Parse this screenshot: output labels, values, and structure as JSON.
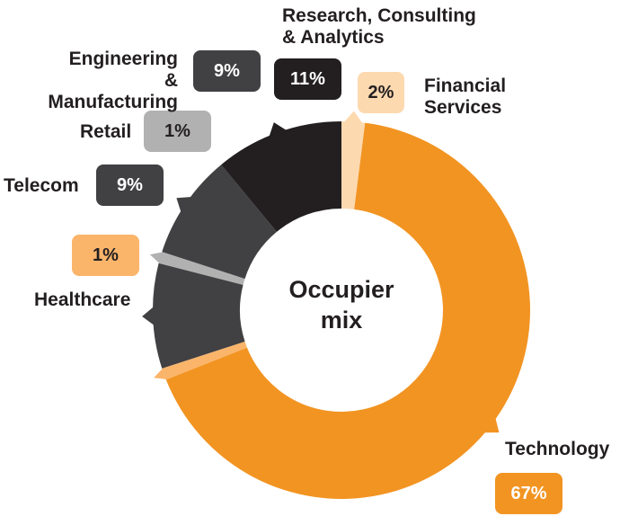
{
  "chart_data": {
    "type": "pie",
    "variant": "donut",
    "title": "Occupier mix",
    "title_lines": [
      "Occupier",
      "mix"
    ],
    "slices": [
      {
        "label": "Financial Services",
        "label_lines": [
          "Financial",
          "Services"
        ],
        "value": 2,
        "value_label": "2%",
        "color": "#FDD9B0",
        "text_color": "#231F20"
      },
      {
        "label": "Technology",
        "label_lines": [
          "Technology"
        ],
        "value": 67,
        "value_label": "67%",
        "color": "#F29422",
        "text_color": "#FFFFFF"
      },
      {
        "label": "Healthcare",
        "label_lines": [
          "Healthcare"
        ],
        "value": 1,
        "value_label": "1%",
        "color": "#FBB56B",
        "text_color": "#231F20"
      },
      {
        "label": "Telecom",
        "label_lines": [
          "Telecom"
        ],
        "value": 9,
        "value_label": "9%",
        "color": "#414042",
        "text_color": "#FFFFFF"
      },
      {
        "label": "Retail",
        "label_lines": [
          "Retail"
        ],
        "value": 1,
        "value_label": "1%",
        "color": "#B1B1B1",
        "text_color": "#231F20"
      },
      {
        "label": "Engineering & Manufacturing",
        "label_lines": [
          "Engineering",
          "& Manufacturing"
        ],
        "value": 9,
        "value_label": "9%",
        "color": "#414042",
        "text_color": "#FFFFFF"
      },
      {
        "label": "Research, Consulting & Analytics",
        "label_lines": [
          "Research, Consulting",
          "& Analytics"
        ],
        "value": 11,
        "value_label": "11%",
        "color": "#231F20",
        "text_color": "#FFFFFF"
      }
    ]
  }
}
